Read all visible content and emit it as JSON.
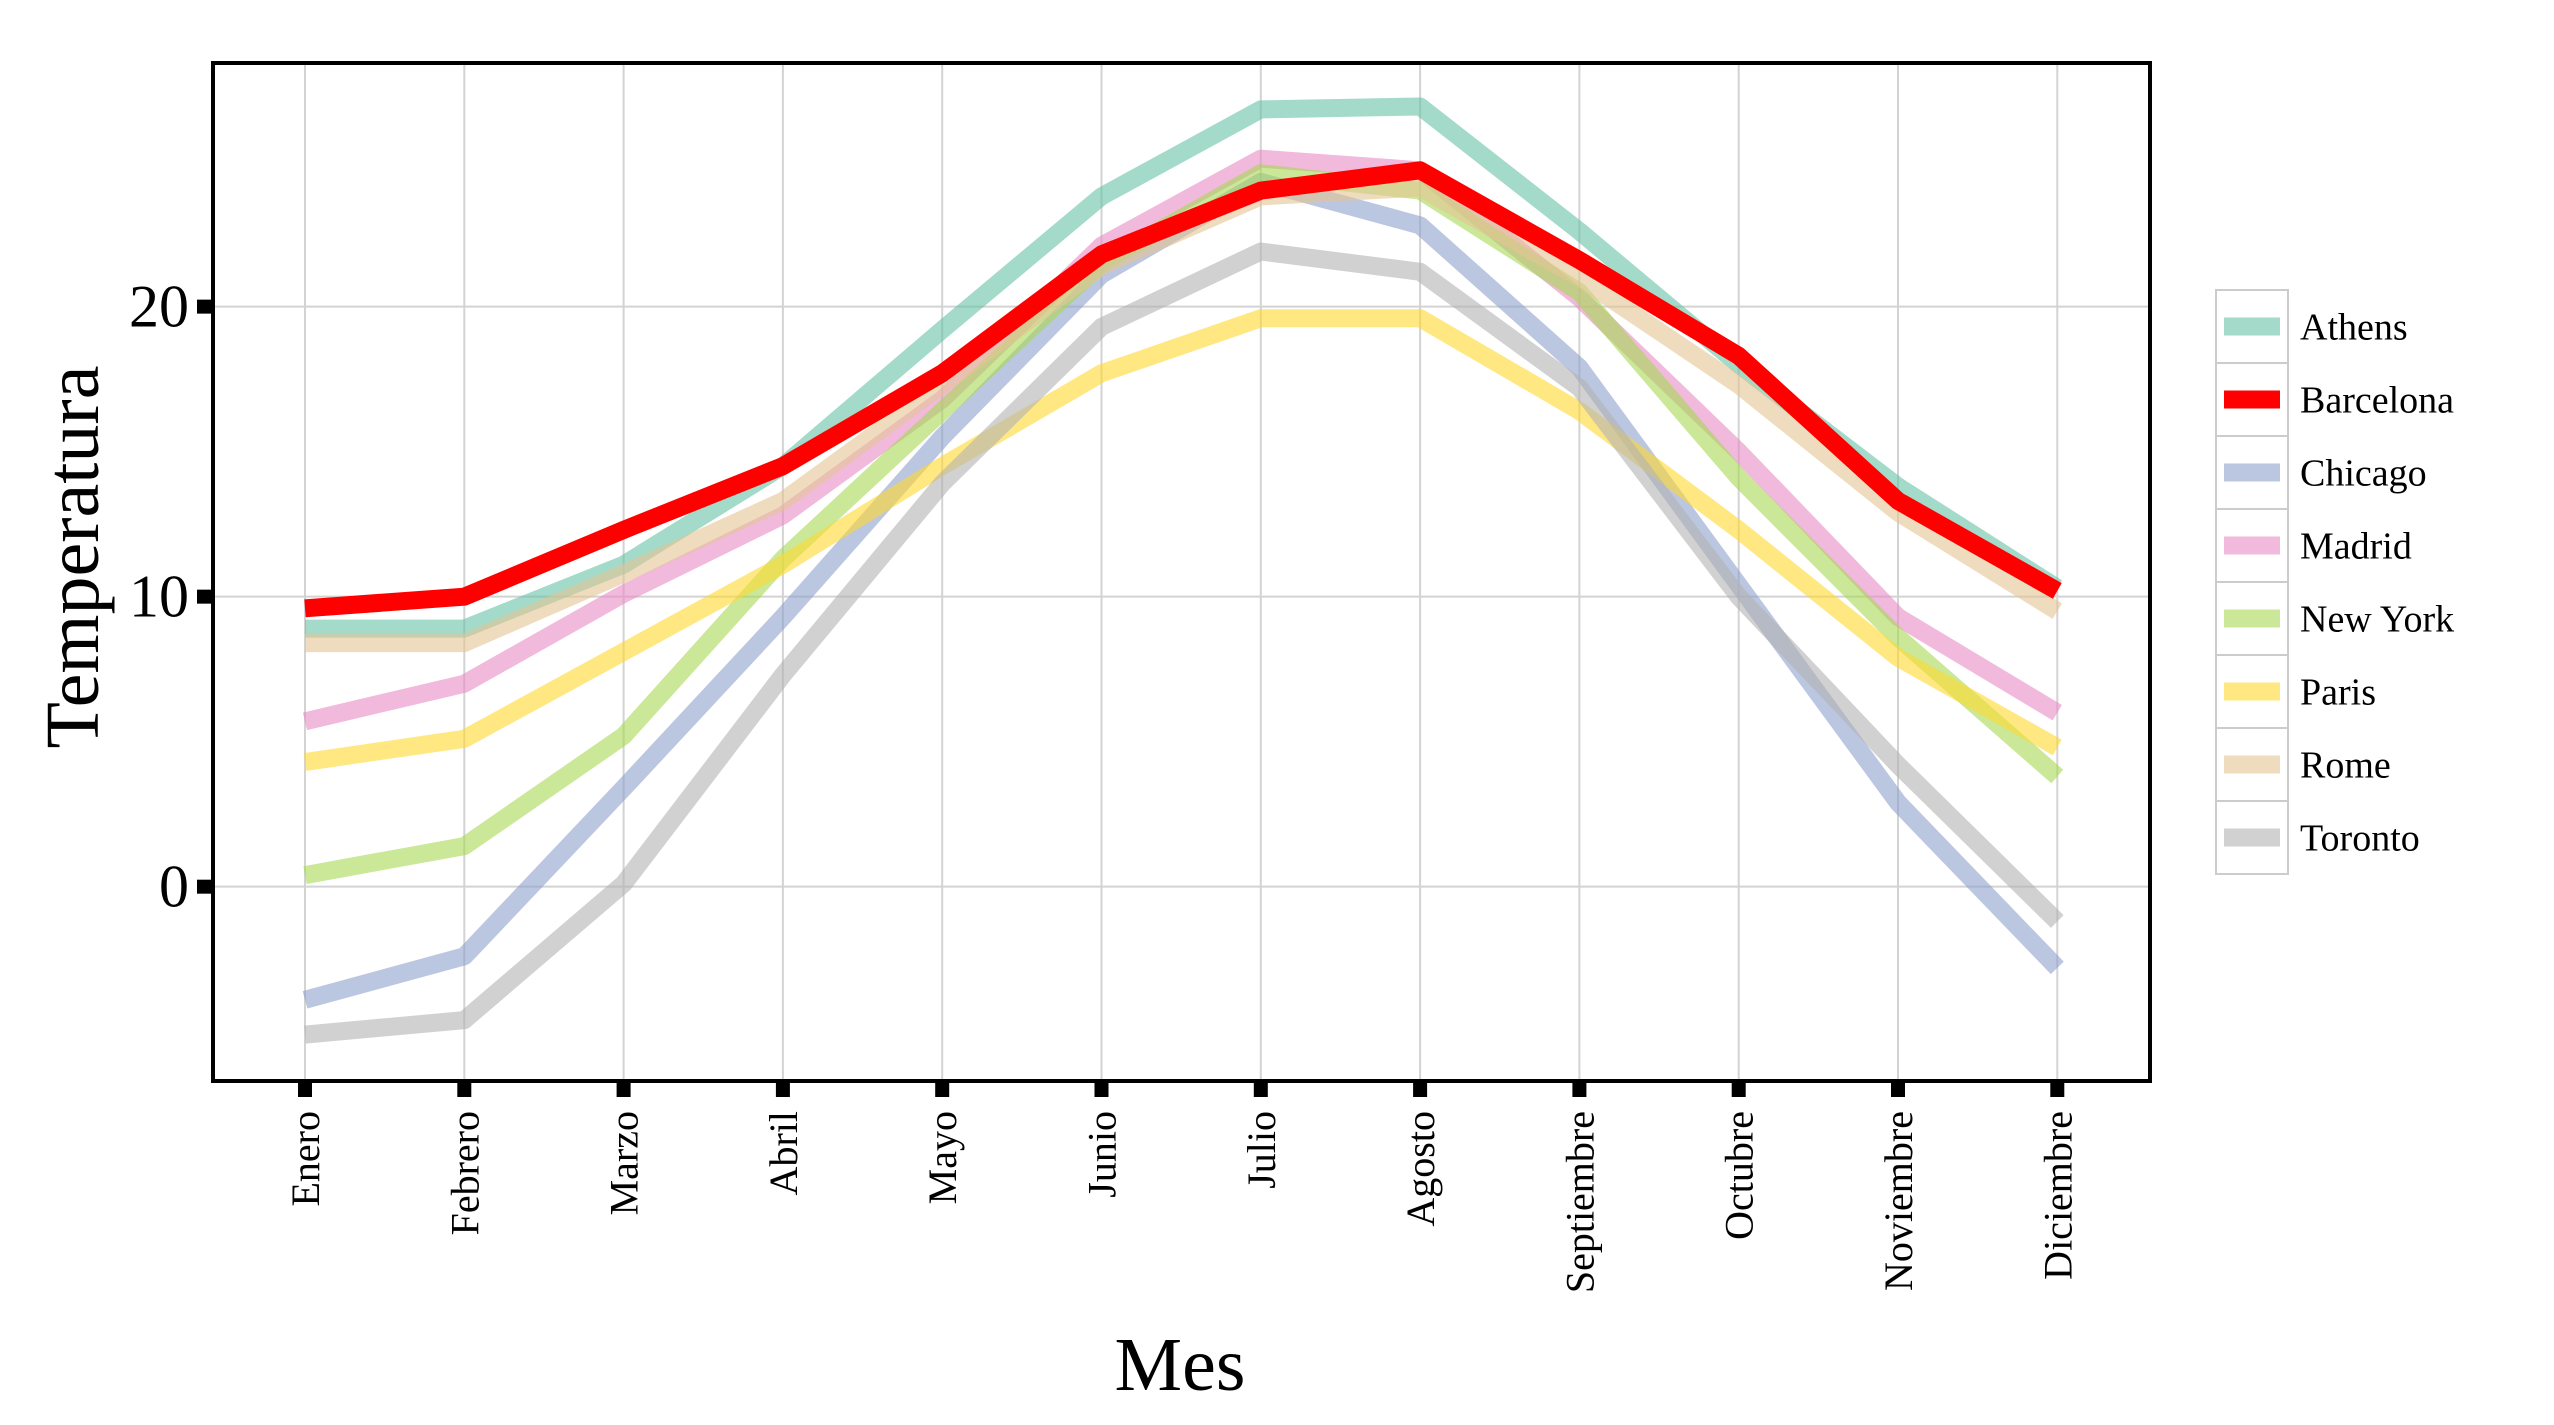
{
  "chart_data": {
    "type": "line",
    "title": "",
    "xlabel": "Mes",
    "ylabel": "Temperatura",
    "categories": [
      "Enero",
      "Febrero",
      "Marzo",
      "Abril",
      "Mayo",
      "Junio",
      "Julio",
      "Agosto",
      "Septiembre",
      "Octubre",
      "Noviembre",
      "Diciembre"
    ],
    "y_ticks": [
      "0",
      "10",
      "20"
    ],
    "ylim": [
      -6.7,
      28.4
    ],
    "grid": true,
    "legend_position": "right",
    "highlight_series": "Barcelona",
    "series": [
      {
        "name": "Athens",
        "color": "#66c2a5",
        "values": [
          8.9,
          8.9,
          11.1,
          14.5,
          19.2,
          23.8,
          26.8,
          26.9,
          22.6,
          18.0,
          13.8,
          10.3
        ]
      },
      {
        "name": "Barcelona",
        "color": "#ff0000",
        "values": [
          9.6,
          10.0,
          12.3,
          14.5,
          17.7,
          21.8,
          24.0,
          24.7,
          21.6,
          18.3,
          13.3,
          10.2
        ]
      },
      {
        "name": "Chicago",
        "color": "#8da0cb",
        "values": [
          -3.9,
          -2.4,
          3.4,
          9.3,
          15.5,
          21.1,
          24.3,
          22.8,
          17.9,
          10.4,
          2.9,
          -2.8
        ]
      },
      {
        "name": "Madrid",
        "color": "#e78ac3",
        "values": [
          5.7,
          7.0,
          10.1,
          12.8,
          16.8,
          22.1,
          25.1,
          24.7,
          20.3,
          15.0,
          9.3,
          6.0
        ]
      },
      {
        "name": "New York",
        "color": "#a6d854",
        "values": [
          0.4,
          1.4,
          5.2,
          11.3,
          16.4,
          21.5,
          24.6,
          24.0,
          20.5,
          14.1,
          8.6,
          3.8
        ]
      },
      {
        "name": "Paris",
        "color": "#ffd92f",
        "values": [
          4.3,
          5.1,
          8.1,
          11.1,
          14.5,
          17.7,
          19.6,
          19.6,
          16.4,
          12.3,
          7.9,
          4.8
        ]
      },
      {
        "name": "Rome",
        "color": "#e5c494",
        "values": [
          8.4,
          8.4,
          10.8,
          13.3,
          17.3,
          21.4,
          23.8,
          24.1,
          21.0,
          17.3,
          12.9,
          9.5
        ]
      },
      {
        "name": "Toronto",
        "color": "#b3b3b3",
        "values": [
          -5.1,
          -4.6,
          0.1,
          7.3,
          13.9,
          19.3,
          21.9,
          21.2,
          17.2,
          10.0,
          4.2,
          -1.2
        ]
      }
    ]
  }
}
